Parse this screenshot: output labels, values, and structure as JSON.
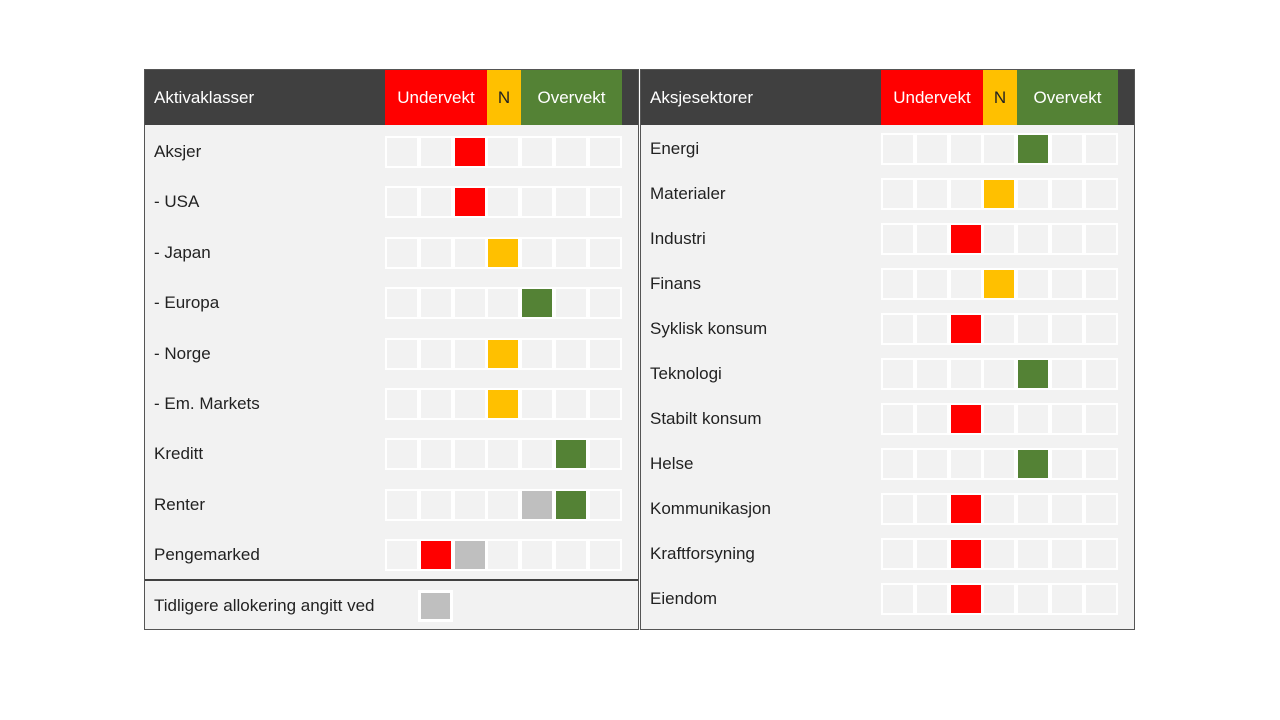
{
  "colors": {
    "underweight": "#ff0000",
    "neutral": "#ffc000",
    "overweight": "#548235",
    "previous": "#bfbfbf",
    "empty": "#f2f2f2"
  },
  "asset_classes": {
    "header": {
      "title": "Aktivaklasser",
      "underweight_label": "Undervekt",
      "neutral_label": "N",
      "overweight_label": "Overvekt"
    },
    "rows": [
      {
        "label": "Aksjer",
        "position": 3,
        "previous": null
      },
      {
        "label": "- USA",
        "position": 3,
        "previous": null
      },
      {
        "label": "- Japan",
        "position": 4,
        "previous": null
      },
      {
        "label": "- Europa",
        "position": 5,
        "previous": null
      },
      {
        "label": "- Norge",
        "position": 4,
        "previous": null
      },
      {
        "label": "- Em. Markets",
        "position": 4,
        "previous": null
      },
      {
        "label": "Kreditt",
        "position": 6,
        "previous": null
      },
      {
        "label": "Renter",
        "position": 6,
        "previous": 5
      },
      {
        "label": "Pengemarked",
        "position": 2,
        "previous": 3
      }
    ],
    "legend": {
      "label": "Tidligere allokering angitt ved"
    }
  },
  "sectors": {
    "header": {
      "title": "Aksjesektorer",
      "underweight_label": "Undervekt",
      "neutral_label": "N",
      "overweight_label": "Overvekt"
    },
    "rows": [
      {
        "label": "Energi",
        "position": 5,
        "previous": null
      },
      {
        "label": "Materialer",
        "position": 4,
        "previous": null
      },
      {
        "label": "Industri",
        "position": 3,
        "previous": null
      },
      {
        "label": "Finans",
        "position": 4,
        "previous": null
      },
      {
        "label": "Syklisk konsum",
        "position": 3,
        "previous": null
      },
      {
        "label": "Teknologi",
        "position": 5,
        "previous": null
      },
      {
        "label": "Stabilt konsum",
        "position": 3,
        "previous": null
      },
      {
        "label": "Helse",
        "position": 5,
        "previous": null
      },
      {
        "label": "Kommunikasjon",
        "position": 3,
        "previous": null
      },
      {
        "label": "Kraftforsyning",
        "position": 3,
        "previous": null
      },
      {
        "label": "Eiendom",
        "position": 3,
        "previous": null
      }
    ]
  }
}
